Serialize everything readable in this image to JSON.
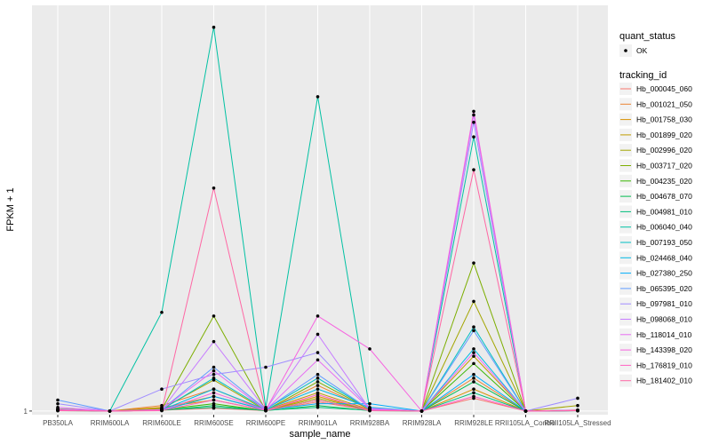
{
  "chart_data": {
    "type": "line",
    "xlabel": "sample_name",
    "ylabel": "FPKM + 1",
    "y_tick_labels": [
      "1"
    ],
    "categories": [
      "PB350LA",
      "RRIM600LA",
      "RRIM600LE",
      "RRIM600SE",
      "RRIM600PE",
      "RRIM901LA",
      "RRIM928BA",
      "RRIM928LA",
      "RRIM928LE",
      "RRII105LA_Control",
      "RRII105LA_Stressed"
    ],
    "ylim": [
      0.9,
      12.1
    ],
    "point_legend": {
      "title": "quant_status",
      "label": "OK"
    },
    "legend_title": "tracking_id",
    "series": [
      {
        "name": "Hb_000045_060",
        "color": "#F8766D",
        "values": [
          1.02,
          1.0,
          1.02,
          1.08,
          1.01,
          1.25,
          1.02,
          1.0,
          1.35,
          1.0,
          1.02
        ]
      },
      {
        "name": "Hb_001021_050",
        "color": "#EA8331",
        "values": [
          1.05,
          1.0,
          1.15,
          1.6,
          1.02,
          1.7,
          1.05,
          1.0,
          1.9,
          1.0,
          1.03
        ]
      },
      {
        "name": "Hb_001758_030",
        "color": "#D89000",
        "values": [
          1.03,
          1.0,
          1.1,
          1.3,
          1.02,
          1.4,
          1.03,
          1.0,
          1.6,
          1.0,
          1.02
        ]
      },
      {
        "name": "Hb_001899_020",
        "color": "#C09B00",
        "values": [
          1.04,
          1.0,
          1.08,
          1.4,
          1.03,
          1.5,
          1.04,
          1.0,
          2.5,
          1.0,
          1.02
        ]
      },
      {
        "name": "Hb_002996_020",
        "color": "#A3A500",
        "values": [
          1.03,
          1.0,
          1.06,
          1.85,
          1.02,
          1.35,
          1.03,
          1.0,
          4.0,
          1.0,
          1.15
        ]
      },
      {
        "name": "Hb_003717_020",
        "color": "#7CAE00",
        "values": [
          1.06,
          1.0,
          1.05,
          3.6,
          1.02,
          1.8,
          1.05,
          1.0,
          5.05,
          1.0,
          1.02
        ]
      },
      {
        "name": "Hb_004235_020",
        "color": "#39B600",
        "values": [
          1.02,
          1.0,
          1.04,
          1.2,
          1.01,
          1.3,
          1.02,
          1.0,
          2.3,
          1.0,
          1.01
        ]
      },
      {
        "name": "Hb_004678_070",
        "color": "#00BB4E",
        "values": [
          1.01,
          1.0,
          1.02,
          1.15,
          1.01,
          1.15,
          1.01,
          1.0,
          1.8,
          1.0,
          1.01
        ]
      },
      {
        "name": "Hb_004981_010",
        "color": "#00BF7D",
        "values": [
          1.02,
          1.0,
          1.03,
          1.1,
          1.02,
          1.1,
          1.02,
          1.0,
          1.5,
          1.0,
          1.01
        ]
      },
      {
        "name": "Hb_006040_040",
        "color": "#00C1A3",
        "values": [
          1.03,
          1.0,
          3.7,
          11.5,
          1.1,
          9.6,
          1.05,
          1.0,
          8.5,
          1.0,
          1.02
        ]
      },
      {
        "name": "Hb_007193_050",
        "color": "#00BFC4",
        "values": [
          1.05,
          1.0,
          1.04,
          1.9,
          1.05,
          1.9,
          1.05,
          1.0,
          3.3,
          1.0,
          1.02
        ]
      },
      {
        "name": "Hb_024468_040",
        "color": "#00B9E3",
        "values": [
          1.04,
          1.0,
          1.03,
          1.6,
          1.04,
          1.6,
          1.1,
          1.0,
          2.7,
          1.0,
          1.02
        ]
      },
      {
        "name": "Hb_027380_250",
        "color": "#00ADFA",
        "values": [
          1.02,
          1.0,
          1.02,
          1.4,
          1.03,
          1.2,
          1.2,
          1.0,
          2.0,
          1.0,
          1.01
        ]
      },
      {
        "name": "Hb_065395_020",
        "color": "#619CFF",
        "values": [
          1.3,
          1.0,
          1.04,
          2.2,
          1.05,
          2.0,
          1.04,
          1.0,
          3.2,
          1.0,
          1.02
        ]
      },
      {
        "name": "Hb_097981_010",
        "color": "#9F8CFF",
        "values": [
          1.2,
          1.0,
          1.6,
          2.0,
          2.2,
          2.6,
          1.08,
          1.0,
          8.9,
          1.0,
          1.35
        ]
      },
      {
        "name": "Hb_098068_010",
        "color": "#C77CFF",
        "values": [
          1.05,
          1.0,
          1.03,
          2.9,
          1.04,
          3.1,
          1.05,
          1.0,
          9.1,
          1.0,
          1.02
        ]
      },
      {
        "name": "Hb_118014_010",
        "color": "#E76BF3",
        "values": [
          1.1,
          1.0,
          1.04,
          2.1,
          1.03,
          2.4,
          1.06,
          1.0,
          2.6,
          1.0,
          1.02
        ]
      },
      {
        "name": "Hb_143398_020",
        "color": "#F763E0",
        "values": [
          1.03,
          1.0,
          1.02,
          1.5,
          1.03,
          3.6,
          2.7,
          1.0,
          9.2,
          1.0,
          1.02
        ]
      },
      {
        "name": "Hb_176819_010",
        "color": "#FF61C3",
        "values": [
          1.02,
          1.0,
          1.02,
          1.3,
          1.02,
          1.45,
          1.02,
          1.0,
          1.4,
          1.0,
          1.01
        ]
      },
      {
        "name": "Hb_181402_010",
        "color": "#FF67A4",
        "values": [
          1.01,
          1.0,
          1.01,
          7.1,
          1.01,
          1.3,
          1.01,
          1.0,
          7.6,
          1.0,
          1.01
        ]
      }
    ]
  }
}
